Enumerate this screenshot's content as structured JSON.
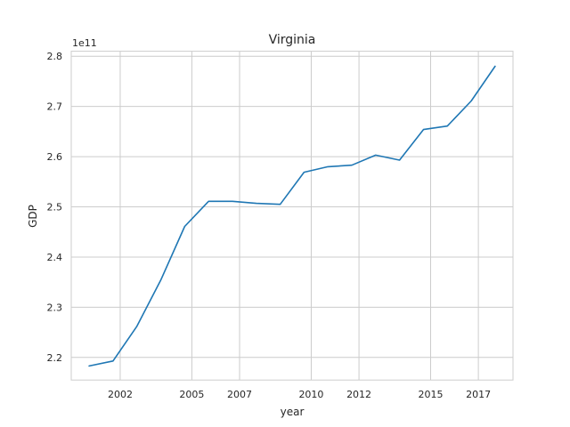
{
  "chart_data": {
    "type": "line",
    "title": "Virginia",
    "xlabel": "year",
    "ylabel": "GDP",
    "offset_label": "1e11",
    "x_ticks": [
      "2002",
      "2005",
      "2007",
      "2010",
      "2012",
      "2015",
      "2017"
    ],
    "y_ticks": [
      "2.2",
      "2.3",
      "2.4",
      "2.5",
      "2.6",
      "2.7",
      "2.8"
    ],
    "grid": true,
    "legend": "none",
    "color": "#1f77b4",
    "xlim": [
      1999.95,
      2018.45
    ],
    "ylim": [
      2.155,
      2.81
    ],
    "series": [
      {
        "x": [
          2000.7,
          2001.7,
          2002.7,
          2003.7,
          2004.7,
          2005.7,
          2006.7,
          2007.7,
          2008.7,
          2009.7,
          2010.7,
          2011.7,
          2012.7,
          2013.7,
          2014.7,
          2015.7,
          2016.7,
          2017.7
        ],
        "y": [
          2.183,
          2.193,
          2.262,
          2.354,
          2.461,
          2.511,
          2.511,
          2.507,
          2.505,
          2.569,
          2.58,
          2.583,
          2.603,
          2.593,
          2.654,
          2.661,
          2.711,
          2.78
        ]
      }
    ]
  }
}
